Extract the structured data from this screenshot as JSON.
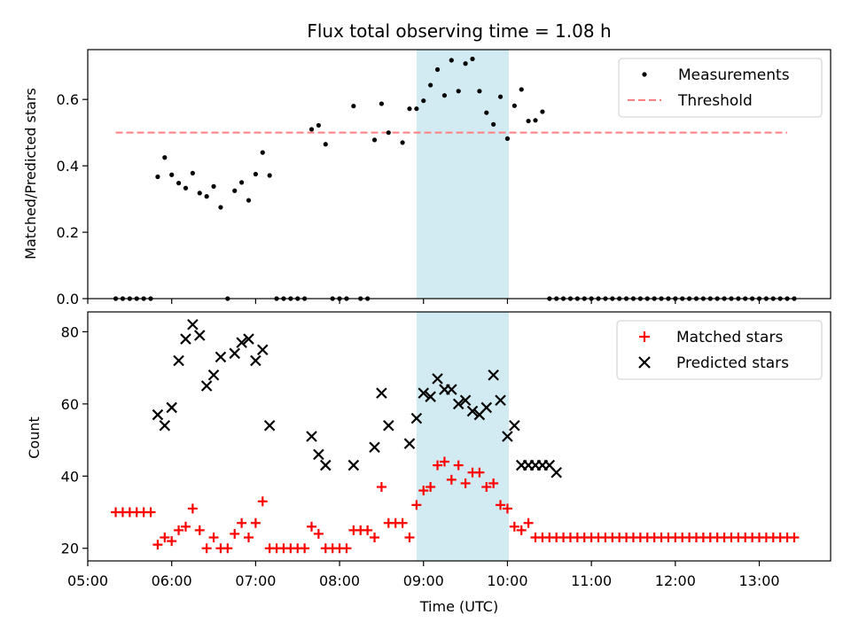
{
  "chart_data": [
    {
      "type": "scatter",
      "title": "Flux total observing time = 1.08 h",
      "xlabel": "",
      "ylabel": "Matched/Predicted stars",
      "ylim": [
        0,
        0.75
      ],
      "yticks": [
        0.0,
        0.2,
        0.4,
        0.6
      ],
      "xlim_hours": [
        5.0,
        13.85
      ],
      "legend_placement": "top-right",
      "highlight_span": [
        "08:55",
        "10:01"
      ],
      "colors": {
        "measurements": "#000000",
        "threshold": "#ff7f7f",
        "span": "#add8e6"
      },
      "series": [
        {
          "name": "Measurements",
          "points": [
            [
              "05:20",
              0.0
            ],
            [
              "05:25",
              0.0
            ],
            [
              "05:30",
              0.0
            ],
            [
              "05:35",
              0.0
            ],
            [
              "05:40",
              0.0
            ],
            [
              "05:45",
              0.0
            ],
            [
              "05:50",
              0.367
            ],
            [
              "05:55",
              0.425
            ],
            [
              "06:00",
              0.373
            ],
            [
              "06:05",
              0.348
            ],
            [
              "06:10",
              0.333
            ],
            [
              "06:15",
              0.378
            ],
            [
              "06:20",
              0.318
            ],
            [
              "06:25",
              0.308
            ],
            [
              "06:30",
              0.338
            ],
            [
              "06:35",
              0.275
            ],
            [
              "06:40",
              0.0
            ],
            [
              "06:45",
              0.325
            ],
            [
              "06:50",
              0.35
            ],
            [
              "06:55",
              0.296
            ],
            [
              "07:00",
              0.375
            ],
            [
              "07:05",
              0.44
            ],
            [
              "07:10",
              0.371
            ],
            [
              "07:15",
              0.0
            ],
            [
              "07:20",
              0.0
            ],
            [
              "07:25",
              0.0
            ],
            [
              "07:30",
              0.0
            ],
            [
              "07:35",
              0.0
            ],
            [
              "07:40",
              0.51
            ],
            [
              "07:45",
              0.522
            ],
            [
              "07:50",
              0.465
            ],
            [
              "07:55",
              0.0
            ],
            [
              "08:00",
              0.0
            ],
            [
              "08:05",
              0.0
            ],
            [
              "08:10",
              0.58
            ],
            [
              "08:15",
              0.0
            ],
            [
              "08:20",
              0.0
            ],
            [
              "08:25",
              0.478
            ],
            [
              "08:30",
              0.587
            ],
            [
              "08:35",
              0.5
            ],
            [
              "08:45",
              0.47
            ],
            [
              "08:50",
              0.572
            ],
            [
              "08:55",
              0.572
            ],
            [
              "09:00",
              0.596
            ],
            [
              "09:05",
              0.643
            ],
            [
              "09:10",
              0.69
            ],
            [
              "09:15",
              0.612
            ],
            [
              "09:20",
              0.718
            ],
            [
              "09:25",
              0.625
            ],
            [
              "09:30",
              0.708
            ],
            [
              "09:35",
              0.722
            ],
            [
              "09:40",
              0.625
            ],
            [
              "09:45",
              0.56
            ],
            [
              "09:50",
              0.525
            ],
            [
              "09:55",
              0.608
            ],
            [
              "10:00",
              0.482
            ],
            [
              "10:05",
              0.581
            ],
            [
              "10:10",
              0.63
            ],
            [
              "10:15",
              0.535
            ],
            [
              "10:20",
              0.537
            ],
            [
              "10:25",
              0.563
            ],
            [
              "10:30",
              0.0
            ],
            [
              "10:35",
              0.0
            ],
            [
              "10:40",
              0.0
            ],
            [
              "10:45",
              0.0
            ],
            [
              "10:50",
              0.0
            ],
            [
              "10:55",
              0.0
            ],
            [
              "11:00",
              0.0
            ],
            [
              "11:05",
              0.0
            ],
            [
              "11:10",
              0.0
            ],
            [
              "11:15",
              0.0
            ],
            [
              "11:20",
              0.0
            ],
            [
              "11:25",
              0.0
            ],
            [
              "11:30",
              0.0
            ],
            [
              "11:35",
              0.0
            ],
            [
              "11:40",
              0.0
            ],
            [
              "11:45",
              0.0
            ],
            [
              "11:50",
              0.0
            ],
            [
              "11:55",
              0.0
            ],
            [
              "12:00",
              0.0
            ],
            [
              "12:05",
              0.0
            ],
            [
              "12:10",
              0.0
            ],
            [
              "12:15",
              0.0
            ],
            [
              "12:20",
              0.0
            ],
            [
              "12:25",
              0.0
            ],
            [
              "12:30",
              0.0
            ],
            [
              "12:35",
              0.0
            ],
            [
              "12:40",
              0.0
            ],
            [
              "12:45",
              0.0
            ],
            [
              "12:50",
              0.0
            ],
            [
              "12:55",
              0.0
            ],
            [
              "13:00",
              0.0
            ],
            [
              "13:05",
              0.0
            ],
            [
              "13:10",
              0.0
            ],
            [
              "13:15",
              0.0
            ],
            [
              "13:20",
              0.0
            ],
            [
              "13:25",
              0.0
            ]
          ]
        },
        {
          "name": "Threshold",
          "points": [
            [
              "05:20",
              0.5
            ],
            [
              "13:20",
              0.5
            ]
          ]
        }
      ]
    },
    {
      "type": "scatter",
      "title": "",
      "xlabel": "Time (UTC)",
      "ylabel": "Count",
      "ylim": [
        16.5,
        85.5
      ],
      "yticks": [
        20,
        40,
        60,
        80
      ],
      "xlim_hours": [
        5.0,
        13.85
      ],
      "xticks": [
        "05:00",
        "06:00",
        "07:00",
        "08:00",
        "09:00",
        "10:00",
        "11:00",
        "12:00",
        "13:00"
      ],
      "legend_placement": "top-right",
      "highlight_span": [
        "08:55",
        "10:01"
      ],
      "colors": {
        "matched": "#ff0000",
        "predicted": "#000000",
        "span": "#add8e6"
      },
      "series": [
        {
          "name": "Matched stars",
          "points": [
            [
              "05:20",
              30
            ],
            [
              "05:25",
              30
            ],
            [
              "05:30",
              30
            ],
            [
              "05:35",
              30
            ],
            [
              "05:40",
              30
            ],
            [
              "05:45",
              30
            ],
            [
              "05:50",
              21
            ],
            [
              "05:55",
              23
            ],
            [
              "06:00",
              22
            ],
            [
              "06:05",
              25
            ],
            [
              "06:10",
              26
            ],
            [
              "06:15",
              31
            ],
            [
              "06:20",
              25
            ],
            [
              "06:25",
              20
            ],
            [
              "06:30",
              23
            ],
            [
              "06:35",
              20
            ],
            [
              "06:40",
              20
            ],
            [
              "06:45",
              24
            ],
            [
              "06:50",
              27
            ],
            [
              "06:55",
              23
            ],
            [
              "07:00",
              27
            ],
            [
              "07:05",
              33
            ],
            [
              "07:10",
              20
            ],
            [
              "07:15",
              20
            ],
            [
              "07:20",
              20
            ],
            [
              "07:25",
              20
            ],
            [
              "07:30",
              20
            ],
            [
              "07:35",
              20
            ],
            [
              "07:40",
              26
            ],
            [
              "07:45",
              24
            ],
            [
              "07:50",
              20
            ],
            [
              "07:55",
              20
            ],
            [
              "08:00",
              20
            ],
            [
              "08:05",
              20
            ],
            [
              "08:10",
              25
            ],
            [
              "08:15",
              25
            ],
            [
              "08:20",
              25
            ],
            [
              "08:25",
              23
            ],
            [
              "08:30",
              37
            ],
            [
              "08:35",
              27
            ],
            [
              "08:40",
              27
            ],
            [
              "08:45",
              27
            ],
            [
              "08:50",
              23
            ],
            [
              "08:55",
              32
            ],
            [
              "09:00",
              36
            ],
            [
              "09:05",
              37
            ],
            [
              "09:10",
              43
            ],
            [
              "09:15",
              44
            ],
            [
              "09:20",
              39
            ],
            [
              "09:25",
              43
            ],
            [
              "09:30",
              38
            ],
            [
              "09:35",
              41
            ],
            [
              "09:40",
              41
            ],
            [
              "09:45",
              37
            ],
            [
              "09:50",
              38
            ],
            [
              "09:55",
              32
            ],
            [
              "10:00",
              31
            ],
            [
              "10:05",
              26
            ],
            [
              "10:10",
              25
            ],
            [
              "10:15",
              27
            ],
            [
              "10:20",
              23
            ],
            [
              "10:25",
              23
            ],
            [
              "10:30",
              23
            ],
            [
              "10:35",
              23
            ],
            [
              "10:40",
              23
            ],
            [
              "10:45",
              23
            ],
            [
              "10:50",
              23
            ],
            [
              "10:55",
              23
            ],
            [
              "11:00",
              23
            ],
            [
              "11:05",
              23
            ],
            [
              "11:10",
              23
            ],
            [
              "11:15",
              23
            ],
            [
              "11:20",
              23
            ],
            [
              "11:25",
              23
            ],
            [
              "11:30",
              23
            ],
            [
              "11:35",
              23
            ],
            [
              "11:40",
              23
            ],
            [
              "11:45",
              23
            ],
            [
              "11:50",
              23
            ],
            [
              "11:55",
              23
            ],
            [
              "12:00",
              23
            ],
            [
              "12:05",
              23
            ],
            [
              "12:10",
              23
            ],
            [
              "12:15",
              23
            ],
            [
              "12:20",
              23
            ],
            [
              "12:25",
              23
            ],
            [
              "12:30",
              23
            ],
            [
              "12:35",
              23
            ],
            [
              "12:40",
              23
            ],
            [
              "12:45",
              23
            ],
            [
              "12:50",
              23
            ],
            [
              "12:55",
              23
            ],
            [
              "13:00",
              23
            ],
            [
              "13:05",
              23
            ],
            [
              "13:10",
              23
            ],
            [
              "13:15",
              23
            ],
            [
              "13:20",
              23
            ],
            [
              "13:25",
              23
            ]
          ]
        },
        {
          "name": "Predicted stars",
          "points": [
            [
              "05:50",
              57
            ],
            [
              "05:55",
              54
            ],
            [
              "06:00",
              59
            ],
            [
              "06:05",
              72
            ],
            [
              "06:10",
              78
            ],
            [
              "06:15",
              82
            ],
            [
              "06:20",
              79
            ],
            [
              "06:25",
              65
            ],
            [
              "06:30",
              68
            ],
            [
              "06:35",
              73
            ],
            [
              "06:45",
              74
            ],
            [
              "06:50",
              77
            ],
            [
              "06:55",
              78
            ],
            [
              "07:00",
              72
            ],
            [
              "07:05",
              75
            ],
            [
              "07:10",
              54
            ],
            [
              "07:40",
              51
            ],
            [
              "07:45",
              46
            ],
            [
              "07:50",
              43
            ],
            [
              "08:10",
              43
            ],
            [
              "08:25",
              48
            ],
            [
              "08:30",
              63
            ],
            [
              "08:35",
              54
            ],
            [
              "08:50",
              49
            ],
            [
              "08:55",
              56
            ],
            [
              "09:00",
              63
            ],
            [
              "09:05",
              62
            ],
            [
              "09:10",
              67
            ],
            [
              "09:15",
              64
            ],
            [
              "09:20",
              64
            ],
            [
              "09:25",
              60
            ],
            [
              "09:30",
              61
            ],
            [
              "09:35",
              58
            ],
            [
              "09:40",
              57
            ],
            [
              "09:45",
              59
            ],
            [
              "09:50",
              68
            ],
            [
              "09:55",
              61
            ],
            [
              "10:00",
              51
            ],
            [
              "10:05",
              54
            ],
            [
              "10:10",
              43
            ],
            [
              "10:15",
              43
            ],
            [
              "10:20",
              43
            ],
            [
              "10:25",
              43
            ],
            [
              "10:30",
              43
            ],
            [
              "10:35",
              41
            ]
          ]
        }
      ]
    }
  ]
}
